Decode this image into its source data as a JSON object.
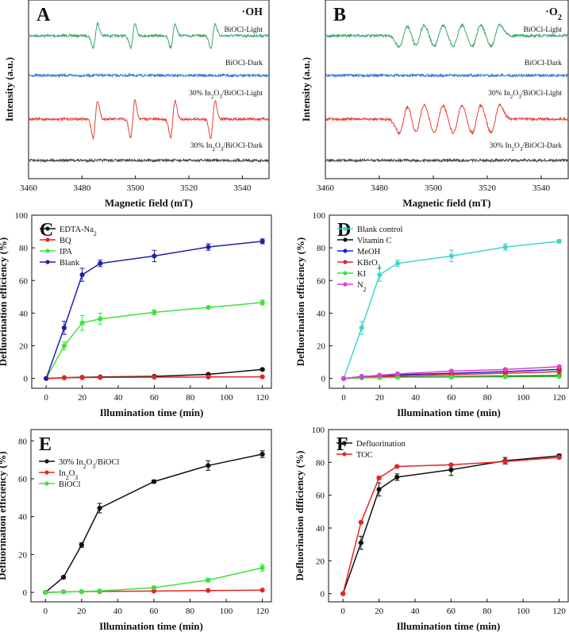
{
  "chart_data": [
    {
      "type": "line",
      "panel": "A",
      "title": "·OH",
      "xlabel": "Magnetic field (mT)",
      "ylabel": "Intensity (a.u.)",
      "xlim": [
        3460,
        3550
      ],
      "xticks": [
        3460,
        3480,
        3500,
        3520,
        3540
      ],
      "peaks": [
        3485,
        3499,
        3514,
        3529
      ],
      "series": [
        {
          "name": "BiOCl-Light",
          "color": "#3aa66a",
          "amp": 0.55
        },
        {
          "name": "BiOCl-Dark",
          "color": "#2a76d2",
          "amp": 0
        },
        {
          "name": "30% In2O3/BiOCl-Light",
          "color": "#e8413b",
          "amp": 0.85
        },
        {
          "name": "30% In2O3/BiOCl-Dark",
          "color": "#444444",
          "amp": 0
        }
      ]
    },
    {
      "type": "line",
      "panel": "B",
      "title": "·O2",
      "xlabel": "Magnetic field (mT)",
      "ylabel": "Intensity (a.u.)",
      "xlim": [
        3460,
        3550
      ],
      "xticks": [
        3460,
        3480,
        3500,
        3520,
        3540
      ],
      "peaks": [
        3489,
        3495,
        3502,
        3509,
        3516,
        3523
      ],
      "series": [
        {
          "name": "BiOCl-Light",
          "color": "#3aa66a",
          "amp": 0.5
        },
        {
          "name": "BiOCl-Dark",
          "color": "#2a76d2",
          "amp": 0
        },
        {
          "name": "30% In2O3/BiOCl-Light",
          "color": "#e8413b",
          "amp": 0.65
        },
        {
          "name": "30% In2O3/BiOCl-Dark",
          "color": "#444444",
          "amp": 0
        }
      ]
    },
    {
      "type": "line",
      "panel": "C",
      "xlabel": "Illumination time (min)",
      "ylabel": "Defluorination efficiency (%)",
      "xlim": [
        -8,
        125
      ],
      "ylim": [
        -6,
        100
      ],
      "xticks": [
        0,
        20,
        40,
        60,
        80,
        100,
        120
      ],
      "yticks": [
        0,
        20,
        40,
        60,
        80,
        100
      ],
      "x": [
        0,
        10,
        20,
        30,
        60,
        90,
        120
      ],
      "series": [
        {
          "name": "EDTA-Na2",
          "color": "#111111",
          "values": [
            0,
            0.5,
            0.7,
            0.9,
            1.3,
            2.5,
            5.5
          ],
          "err": [
            0,
            0.3,
            0.3,
            0.3,
            0.4,
            0.5,
            0.6
          ]
        },
        {
          "name": "BQ",
          "color": "#e82424",
          "values": [
            0,
            0.4,
            0.5,
            0.6,
            0.8,
            0.9,
            1.0
          ],
          "err": [
            0,
            0.2,
            0.2,
            0.2,
            0.2,
            0.2,
            0.2
          ]
        },
        {
          "name": "IPA",
          "color": "#3ee23e",
          "values": [
            0,
            20,
            34,
            36.5,
            40.5,
            43.5,
            46.5
          ],
          "err": [
            0,
            2.5,
            4.5,
            3.5,
            1.5,
            0.5,
            1.5
          ]
        },
        {
          "name": "Blank",
          "color": "#2121a8",
          "values": [
            0,
            31,
            63.5,
            70.5,
            75,
            80.5,
            84
          ],
          "err": [
            0,
            4,
            4,
            2,
            3.5,
            2,
            1.5
          ]
        }
      ]
    },
    {
      "type": "line",
      "panel": "D",
      "xlabel": "Illumination time (min)",
      "ylabel": "Defluorination efficiency (%)",
      "xlim": [
        -8,
        125
      ],
      "ylim": [
        -6,
        100
      ],
      "xticks": [
        0,
        20,
        40,
        60,
        80,
        100,
        120
      ],
      "yticks": [
        0,
        20,
        40,
        60,
        80,
        100
      ],
      "x": [
        0,
        10,
        20,
        30,
        60,
        90,
        120
      ],
      "series": [
        {
          "name": "Blank control",
          "color": "#3ad8d0",
          "values": [
            0,
            31,
            63.5,
            70.5,
            75,
            80.5,
            84
          ],
          "err": [
            0,
            4,
            4,
            2,
            3.5,
            2,
            1
          ]
        },
        {
          "name": "Vitamin C",
          "color": "#111111",
          "values": [
            0,
            0.5,
            0.7,
            0.9,
            1.1,
            1.4,
            1.7
          ],
          "err": [
            0,
            0.2,
            0.2,
            0.2,
            0.2,
            0.2,
            0.2
          ]
        },
        {
          "name": "MeOH",
          "color": "#2121d8",
          "values": [
            0,
            1.2,
            1.8,
            2.3,
            3.2,
            4.2,
            5.5
          ],
          "err": [
            0,
            0.3,
            0.3,
            0.3,
            0.3,
            0.3,
            0.3
          ]
        },
        {
          "name": "KBrO3",
          "color": "#e82424",
          "values": [
            0,
            0.8,
            1.2,
            1.6,
            2.4,
            3.2,
            4.2
          ],
          "err": [
            0,
            0.3,
            0.3,
            0.3,
            0.3,
            0.3,
            0.3
          ]
        },
        {
          "name": "KI",
          "color": "#3ee23e",
          "values": [
            0,
            0.3,
            0.5,
            0.7,
            0.8,
            1.0,
            1.2
          ],
          "err": [
            0,
            0.2,
            0.2,
            0.2,
            0.2,
            0.2,
            0.2
          ]
        },
        {
          "name": "N2",
          "color": "#e040d0",
          "values": [
            0,
            1.0,
            2.0,
            2.8,
            4.5,
            5.5,
            7.2
          ],
          "err": [
            0,
            0.3,
            0.3,
            0.3,
            0.4,
            0.4,
            0.5
          ]
        }
      ]
    },
    {
      "type": "line",
      "panel": "E",
      "xlabel": "Illumination time (min)",
      "ylabel": "Defluorination efficiency (%)",
      "xlim": [
        -8,
        125
      ],
      "ylim": [
        -5,
        86
      ],
      "xticks": [
        0,
        20,
        40,
        60,
        80,
        100,
        120
      ],
      "yticks": [
        0,
        20,
        40,
        60,
        80
      ],
      "x": [
        0,
        10,
        20,
        30,
        60,
        90,
        120
      ],
      "series": [
        {
          "name": "30% In2O3/BiOCl",
          "color": "#111111",
          "values": [
            0,
            8,
            25,
            44.5,
            58.5,
            67,
            73
          ],
          "err": [
            0,
            0.5,
            1.2,
            2.5,
            0.8,
            2.5,
            1.8
          ]
        },
        {
          "name": "In2O3",
          "color": "#e82424",
          "values": [
            0,
            0.3,
            0.4,
            0.5,
            0.7,
            1.0,
            1.2
          ],
          "err": [
            0,
            0.2,
            0.2,
            0.2,
            0.2,
            0.2,
            0.2
          ]
        },
        {
          "name": "BiOCl",
          "color": "#3ee23e",
          "values": [
            0,
            0.2,
            0.4,
            0.8,
            2.5,
            6.5,
            13
          ],
          "err": [
            0,
            0.2,
            0.3,
            0.4,
            0.6,
            1.0,
            1.8
          ]
        }
      ]
    },
    {
      "type": "line",
      "panel": "F",
      "xlabel": "Illumination time (min)",
      "ylabel": "Defluorination dfficiency (%)",
      "xlim": [
        -8,
        125
      ],
      "ylim": [
        -5,
        100
      ],
      "xticks": [
        0,
        20,
        40,
        60,
        80,
        100,
        120
      ],
      "yticks": [
        0,
        20,
        40,
        60,
        80,
        100
      ],
      "x": [
        0,
        10,
        20,
        30,
        60,
        90,
        120
      ],
      "series": [
        {
          "name": "Defluorination",
          "color": "#111111",
          "values": [
            0,
            31,
            63.5,
            71,
            75.5,
            81,
            84
          ],
          "err": [
            0,
            4,
            4,
            2,
            3.5,
            2,
            1
          ]
        },
        {
          "name": "TOC",
          "color": "#e82424",
          "values": [
            0,
            43.5,
            70.5,
            77.5,
            78.5,
            80.5,
            83
          ],
          "err": [
            0,
            0.5,
            1,
            0.5,
            0.5,
            0.5,
            0.5
          ]
        }
      ]
    }
  ]
}
